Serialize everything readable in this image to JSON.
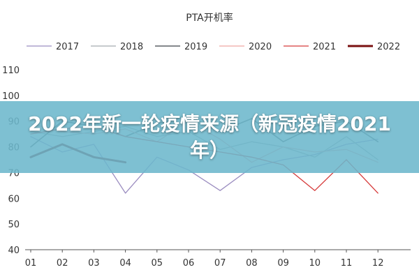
{
  "banner": {
    "title": "2022年新一轮疫情来源（新冠疫情2021年）"
  },
  "chart_data": {
    "type": "line",
    "title": "PTA开机率",
    "xlabel": "",
    "ylabel": "",
    "x": [
      "01",
      "02",
      "03",
      "04",
      "05",
      "06",
      "07",
      "08",
      "09",
      "10",
      "11",
      "12"
    ],
    "ylim": [
      40,
      110
    ],
    "yticks": [
      40,
      50,
      60,
      70,
      80,
      90,
      100,
      110
    ],
    "legend_position": "top",
    "grid": false,
    "series": [
      {
        "name": "2017",
        "color": "#9b8dc0",
        "width": 1.3,
        "values": [
          84,
          78,
          81,
          62,
          76,
          71,
          63,
          72,
          75,
          77,
          81,
          83
        ]
      },
      {
        "name": "2018",
        "color": "#a4aaaf",
        "width": 1.3,
        "values": [
          86,
          84,
          86,
          88,
          84,
          86,
          79,
          82,
          80,
          76,
          84,
          75
        ]
      },
      {
        "name": "2019",
        "color": "#5c6166",
        "width": 1.6,
        "values": [
          80,
          90,
          88,
          84,
          89,
          92,
          86,
          91,
          82,
          88,
          90,
          82
        ]
      },
      {
        "name": "2020",
        "color": "#efa7a2",
        "width": 1.3,
        "values": [
          89,
          86,
          85,
          87,
          82,
          90,
          83,
          74,
          80,
          78,
          79,
          74
        ]
      },
      {
        "name": "2021",
        "color": "#d63a3a",
        "width": 1.3,
        "values": [
          85,
          87,
          88,
          84,
          82,
          80,
          78,
          76,
          73,
          63,
          75,
          62
        ]
      },
      {
        "name": "2022",
        "color": "#7a1010",
        "width": 3.0,
        "values": [
          76,
          81,
          76,
          74,
          null,
          null,
          null,
          null,
          null,
          null,
          null,
          null
        ]
      }
    ]
  }
}
